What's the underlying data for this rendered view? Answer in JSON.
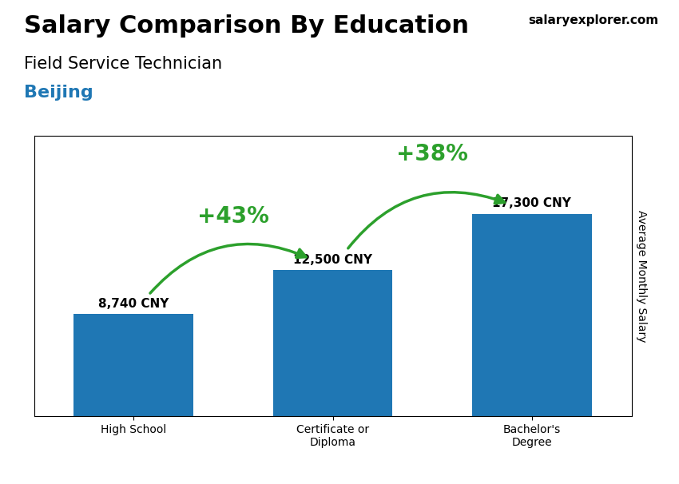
{
  "chart_data": {
    "type": "bar",
    "title": "Salary Comparison By Education",
    "subtitle": [
      "Field Service Technician",
      "Beijing"
    ],
    "source": "salaryexplorer.com",
    "y_label": "Average Monthly Salary",
    "categories": [
      "High School",
      "Certificate or\nDiploma",
      "Bachelor's\nDegree"
    ],
    "values": [
      8740,
      12500,
      17300
    ],
    "value_labels": [
      "8,740 CNY",
      "12,500 CNY",
      "17,300 CNY"
    ],
    "data_labels": true,
    "annotations": [
      "+43%",
      "+38%"
    ],
    "ylim": [
      0,
      24000
    ],
    "tick_labels": "x",
    "grid": false
  }
}
